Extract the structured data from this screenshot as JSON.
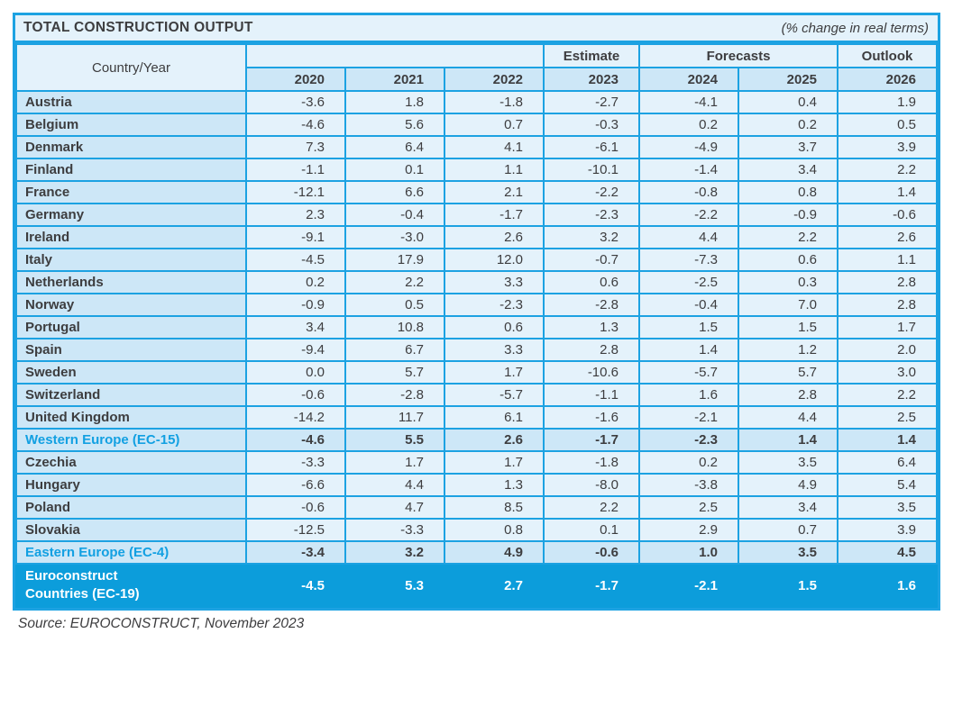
{
  "title_bar": {
    "title": "TOTAL CONSTRUCTION OUTPUT",
    "note": "(% change in real terms)"
  },
  "table": {
    "corner_label": "Country/Year",
    "group_headers": {
      "estimate": "Estimate",
      "forecasts": "Forecasts",
      "outlook": "Outlook"
    },
    "years": [
      "2020",
      "2021",
      "2022",
      "2023",
      "2024",
      "2025",
      "2026"
    ],
    "rows": [
      {
        "label": "Austria",
        "type": "country",
        "values": [
          "-3.6",
          "1.8",
          "-1.8",
          "-2.7",
          "-4.1",
          "0.4",
          "1.9"
        ]
      },
      {
        "label": "Belgium",
        "type": "country",
        "values": [
          "-4.6",
          "5.6",
          "0.7",
          "-0.3",
          "0.2",
          "0.2",
          "0.5"
        ]
      },
      {
        "label": "Denmark",
        "type": "country",
        "values": [
          "7.3",
          "6.4",
          "4.1",
          "-6.1",
          "-4.9",
          "3.7",
          "3.9"
        ]
      },
      {
        "label": "Finland",
        "type": "country",
        "values": [
          "-1.1",
          "0.1",
          "1.1",
          "-10.1",
          "-1.4",
          "3.4",
          "2.2"
        ]
      },
      {
        "label": "France",
        "type": "country",
        "values": [
          "-12.1",
          "6.6",
          "2.1",
          "-2.2",
          "-0.8",
          "0.8",
          "1.4"
        ]
      },
      {
        "label": "Germany",
        "type": "country",
        "values": [
          "2.3",
          "-0.4",
          "-1.7",
          "-2.3",
          "-2.2",
          "-0.9",
          "-0.6"
        ]
      },
      {
        "label": "Ireland",
        "type": "country",
        "values": [
          "-9.1",
          "-3.0",
          "2.6",
          "3.2",
          "4.4",
          "2.2",
          "2.6"
        ]
      },
      {
        "label": "Italy",
        "type": "country",
        "values": [
          "-4.5",
          "17.9",
          "12.0",
          "-0.7",
          "-7.3",
          "0.6",
          "1.1"
        ]
      },
      {
        "label": "Netherlands",
        "type": "country",
        "values": [
          "0.2",
          "2.2",
          "3.3",
          "0.6",
          "-2.5",
          "0.3",
          "2.8"
        ]
      },
      {
        "label": "Norway",
        "type": "country",
        "values": [
          "-0.9",
          "0.5",
          "-2.3",
          "-2.8",
          "-0.4",
          "7.0",
          "2.8"
        ]
      },
      {
        "label": "Portugal",
        "type": "country",
        "values": [
          "3.4",
          "10.8",
          "0.6",
          "1.3",
          "1.5",
          "1.5",
          "1.7"
        ]
      },
      {
        "label": "Spain",
        "type": "country",
        "values": [
          "-9.4",
          "6.7",
          "3.3",
          "2.8",
          "1.4",
          "1.2",
          "2.0"
        ]
      },
      {
        "label": "Sweden",
        "type": "country",
        "values": [
          "0.0",
          "5.7",
          "1.7",
          "-10.6",
          "-5.7",
          "5.7",
          "3.0"
        ]
      },
      {
        "label": "Switzerland",
        "type": "country",
        "values": [
          "-0.6",
          "-2.8",
          "-5.7",
          "-1.1",
          "1.6",
          "2.8",
          "2.2"
        ]
      },
      {
        "label": "United Kingdom",
        "type": "country",
        "values": [
          "-14.2",
          "11.7",
          "6.1",
          "-1.6",
          "-2.1",
          "4.4",
          "2.5"
        ]
      },
      {
        "label": "Western Europe (EC-15)",
        "type": "summary",
        "values": [
          "-4.6",
          "5.5",
          "2.6",
          "-1.7",
          "-2.3",
          "1.4",
          "1.4"
        ]
      },
      {
        "label": "Czechia",
        "type": "country",
        "values": [
          "-3.3",
          "1.7",
          "1.7",
          "-1.8",
          "0.2",
          "3.5",
          "6.4"
        ]
      },
      {
        "label": "Hungary",
        "type": "country",
        "values": [
          "-6.6",
          "4.4",
          "1.3",
          "-8.0",
          "-3.8",
          "4.9",
          "5.4"
        ]
      },
      {
        "label": "Poland",
        "type": "country",
        "values": [
          "-0.6",
          "4.7",
          "8.5",
          "2.2",
          "2.5",
          "3.4",
          "3.5"
        ]
      },
      {
        "label": "Slovakia",
        "type": "country",
        "values": [
          "-12.5",
          "-3.3",
          "0.8",
          "0.1",
          "2.9",
          "0.7",
          "3.9"
        ]
      },
      {
        "label": "Eastern Europe (EC-4)",
        "type": "summary",
        "values": [
          "-3.4",
          "3.2",
          "4.9",
          "-0.6",
          "1.0",
          "3.5",
          "4.5"
        ]
      },
      {
        "label": "Euroconstruct\nCountries (EC-19)",
        "type": "total",
        "values": [
          "-4.5",
          "5.3",
          "2.7",
          "-1.7",
          "-2.1",
          "1.5",
          "1.6"
        ]
      }
    ]
  },
  "source": "Source: EUROCONSTRUCT, November 2023",
  "colors": {
    "grid_border": "#1ca2e2",
    "cell_light": "#e4f2fb",
    "cell_medium": "#cde7f7",
    "total_row_bg": "#0c9ddb",
    "text_dark": "#3d3d3f",
    "text_accent": "#12a0e2",
    "total_row_text": "#ffffff"
  }
}
